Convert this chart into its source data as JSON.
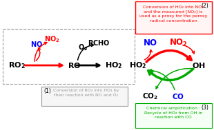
{
  "bg_color": "#ffffff",
  "box1_color": "#999999",
  "box2_color": "#ff0000",
  "box3_color": "#00aa00",
  "text_NO_color": "#0000ff",
  "text_NO2_color": "#ff0000",
  "text_black": "#000000",
  "arrow_red": "#ff0000",
  "arrow_black": "#000000",
  "arrow_green": "#00aa00",
  "label1": "(1)",
  "label2": "(2)",
  "label3": "(3)",
  "box1_text": "Conversion of RO₂ into HO₂ by\ntheir reaction with NO and O₂",
  "box2_text": "Conversion of HO₂ into NO₂\nand the measured [NO₂] is\nused as a proxy for the peroxy\nradical concentration",
  "box3_text": "Chemical amplification :\nRecycle of HO₂ from OH in\nreaction with CO"
}
